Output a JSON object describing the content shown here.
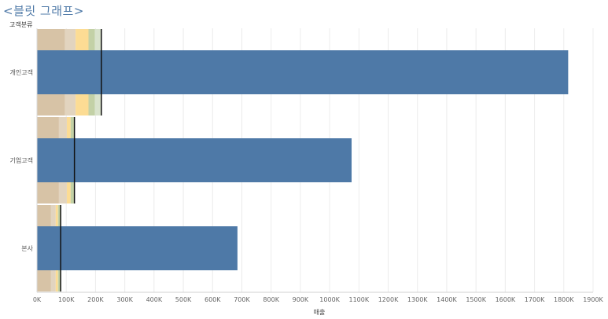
{
  "title": "<블릿 그래프>",
  "chart_data": {
    "type": "bar",
    "subtype": "bullet",
    "row_header": "고객분류",
    "xlabel": "매출",
    "xlim": [
      0,
      1900000
    ],
    "xticks": [
      {
        "value": 0,
        "label": "0K"
      },
      {
        "value": 100000,
        "label": "100K"
      },
      {
        "value": 200000,
        "label": "200K"
      },
      {
        "value": 300000,
        "label": "300K"
      },
      {
        "value": 400000,
        "label": "400K"
      },
      {
        "value": 500000,
        "label": "500K"
      },
      {
        "value": 600000,
        "label": "600K"
      },
      {
        "value": 700000,
        "label": "700K"
      },
      {
        "value": 800000,
        "label": "800K"
      },
      {
        "value": 900000,
        "label": "900K"
      },
      {
        "value": 1000000,
        "label": "1000K"
      },
      {
        "value": 1100000,
        "label": "1100K"
      },
      {
        "value": 1200000,
        "label": "1200K"
      },
      {
        "value": 1300000,
        "label": "1300K"
      },
      {
        "value": 1400000,
        "label": "1400K"
      },
      {
        "value": 1500000,
        "label": "1500K"
      },
      {
        "value": 1600000,
        "label": "1600K"
      },
      {
        "value": 1700000,
        "label": "1700K"
      },
      {
        "value": 1800000,
        "label": "1800K"
      },
      {
        "value": 1900000,
        "label": "1900K"
      }
    ],
    "grid": true,
    "band_colors": [
      "#d7c3a6",
      "#e2d4bf",
      "#fcdc94",
      "#c3d1a6",
      "#d9e3cc"
    ],
    "bar_color": "#4e79a7",
    "reference_line_color": "#111111",
    "categories": [
      "개인고객",
      "기업고객",
      "본사"
    ],
    "values": [
      1815000,
      1075000,
      685000
    ],
    "reference_values": [
      220000,
      128000,
      81000
    ],
    "bands": [
      [
        {
          "from": 0,
          "to": 96000
        },
        {
          "from": 96000,
          "to": 132000
        },
        {
          "from": 132000,
          "to": 176000
        },
        {
          "from": 176000,
          "to": 198000
        },
        {
          "from": 198000,
          "to": 220000
        }
      ],
      [
        {
          "from": 0,
          "to": 75000
        },
        {
          "from": 75000,
          "to": 102000
        },
        {
          "from": 102000,
          "to": 115000
        },
        {
          "from": 115000,
          "to": 128000
        }
      ],
      [
        {
          "from": 0,
          "to": 48000
        },
        {
          "from": 48000,
          "to": 64000
        },
        {
          "from": 64000,
          "to": 72000
        },
        {
          "from": 72000,
          "to": 81000
        }
      ]
    ]
  }
}
